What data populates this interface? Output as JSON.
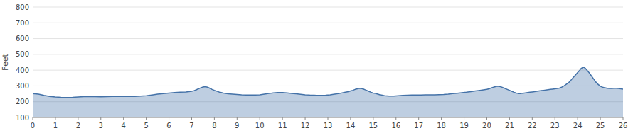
{
  "chart_data": {
    "type": "area",
    "ylabel": "Feet",
    "color": "#4472a8",
    "grid": true,
    "xlim": [
      0,
      26
    ],
    "ylim": [
      100,
      800
    ],
    "xticks": [
      0,
      1,
      2,
      3,
      4,
      5,
      6,
      7,
      8,
      9,
      10,
      11,
      12,
      13,
      14,
      15,
      16,
      17,
      18,
      19,
      20,
      21,
      22,
      23,
      24,
      25,
      26
    ],
    "yticks": [
      100,
      200,
      300,
      400,
      500,
      600,
      700,
      800
    ],
    "x": [
      0.0,
      0.25,
      0.5,
      0.75,
      1.0,
      1.25,
      1.5,
      1.75,
      2.0,
      2.25,
      2.5,
      2.75,
      3.0,
      3.25,
      3.5,
      3.75,
      4.0,
      4.25,
      4.5,
      4.75,
      5.0,
      5.25,
      5.5,
      5.75,
      6.0,
      6.25,
      6.5,
      6.75,
      7.0,
      7.1,
      7.2,
      7.3,
      7.4,
      7.5,
      7.6,
      7.7,
      7.8,
      7.9,
      8.0,
      8.2,
      8.4,
      8.6,
      8.8,
      9.0,
      9.2,
      9.4,
      9.6,
      9.8,
      10.0,
      10.2,
      10.4,
      10.6,
      10.8,
      11.0,
      11.2,
      11.4,
      11.6,
      11.8,
      12.0,
      12.2,
      12.4,
      12.5,
      12.7,
      12.9,
      13.1,
      13.3,
      13.5,
      13.7,
      13.9,
      14.0,
      14.1,
      14.2,
      14.3,
      14.4,
      14.5,
      14.6,
      14.7,
      14.8,
      14.9,
      15.0,
      15.1,
      15.2,
      15.3,
      15.4,
      15.5,
      15.7,
      15.9,
      16.1,
      16.3,
      16.5,
      16.7,
      16.9,
      17.1,
      17.3,
      17.5,
      17.7,
      17.9,
      18.1,
      18.3,
      18.5,
      18.7,
      18.9,
      19.1,
      19.3,
      19.5,
      19.7,
      19.9,
      20.0,
      20.1,
      20.2,
      20.3,
      20.4,
      20.5,
      20.6,
      20.7,
      20.8,
      20.9,
      21.0,
      21.1,
      21.2,
      21.3,
      21.4,
      21.5,
      21.6,
      21.7,
      21.8,
      21.9,
      22.0,
      22.1,
      22.2,
      22.3,
      22.4,
      22.5,
      22.6,
      22.7,
      22.8,
      22.9,
      23.0,
      23.1,
      23.2,
      23.3,
      23.4,
      23.5,
      23.6,
      23.7,
      23.8,
      23.9,
      24.0,
      24.1,
      24.15,
      24.2,
      24.25,
      24.3,
      24.35,
      24.4,
      24.5,
      24.6,
      24.7,
      24.8,
      24.9,
      25.0,
      25.1,
      25.2,
      25.3,
      25.4,
      25.5,
      25.6,
      25.7,
      25.8,
      25.9,
      26.0
    ],
    "values": [
      252,
      248,
      240,
      233,
      230,
      228,
      227,
      228,
      230,
      232,
      233,
      232,
      231,
      232,
      233,
      234,
      234,
      233,
      234,
      236,
      238,
      242,
      248,
      252,
      255,
      258,
      260,
      262,
      266,
      270,
      275,
      282,
      288,
      293,
      295,
      292,
      285,
      278,
      272,
      262,
      255,
      250,
      248,
      246,
      244,
      243,
      242,
      242,
      244,
      248,
      252,
      256,
      258,
      258,
      256,
      253,
      250,
      247,
      244,
      242,
      241,
      240,
      240,
      241,
      244,
      248,
      252,
      258,
      264,
      268,
      272,
      278,
      282,
      285,
      283,
      278,
      272,
      266,
      260,
      255,
      252,
      248,
      244,
      241,
      238,
      236,
      236,
      238,
      240,
      241,
      242,
      242,
      243,
      244,
      244,
      244,
      245,
      246,
      248,
      251,
      254,
      257,
      260,
      264,
      268,
      272,
      276,
      278,
      282,
      288,
      292,
      296,
      298,
      295,
      290,
      284,
      278,
      272,
      266,
      260,
      255,
      252,
      252,
      254,
      256,
      258,
      260,
      262,
      264,
      266,
      268,
      270,
      272,
      274,
      276,
      278,
      280,
      282,
      284,
      286,
      292,
      300,
      310,
      320,
      335,
      352,
      368,
      385,
      400,
      410,
      415,
      418,
      416,
      410,
      402,
      385,
      365,
      345,
      325,
      310,
      298,
      292,
      288,
      285,
      284,
      284,
      285,
      285,
      284,
      282,
      280
    ]
  }
}
